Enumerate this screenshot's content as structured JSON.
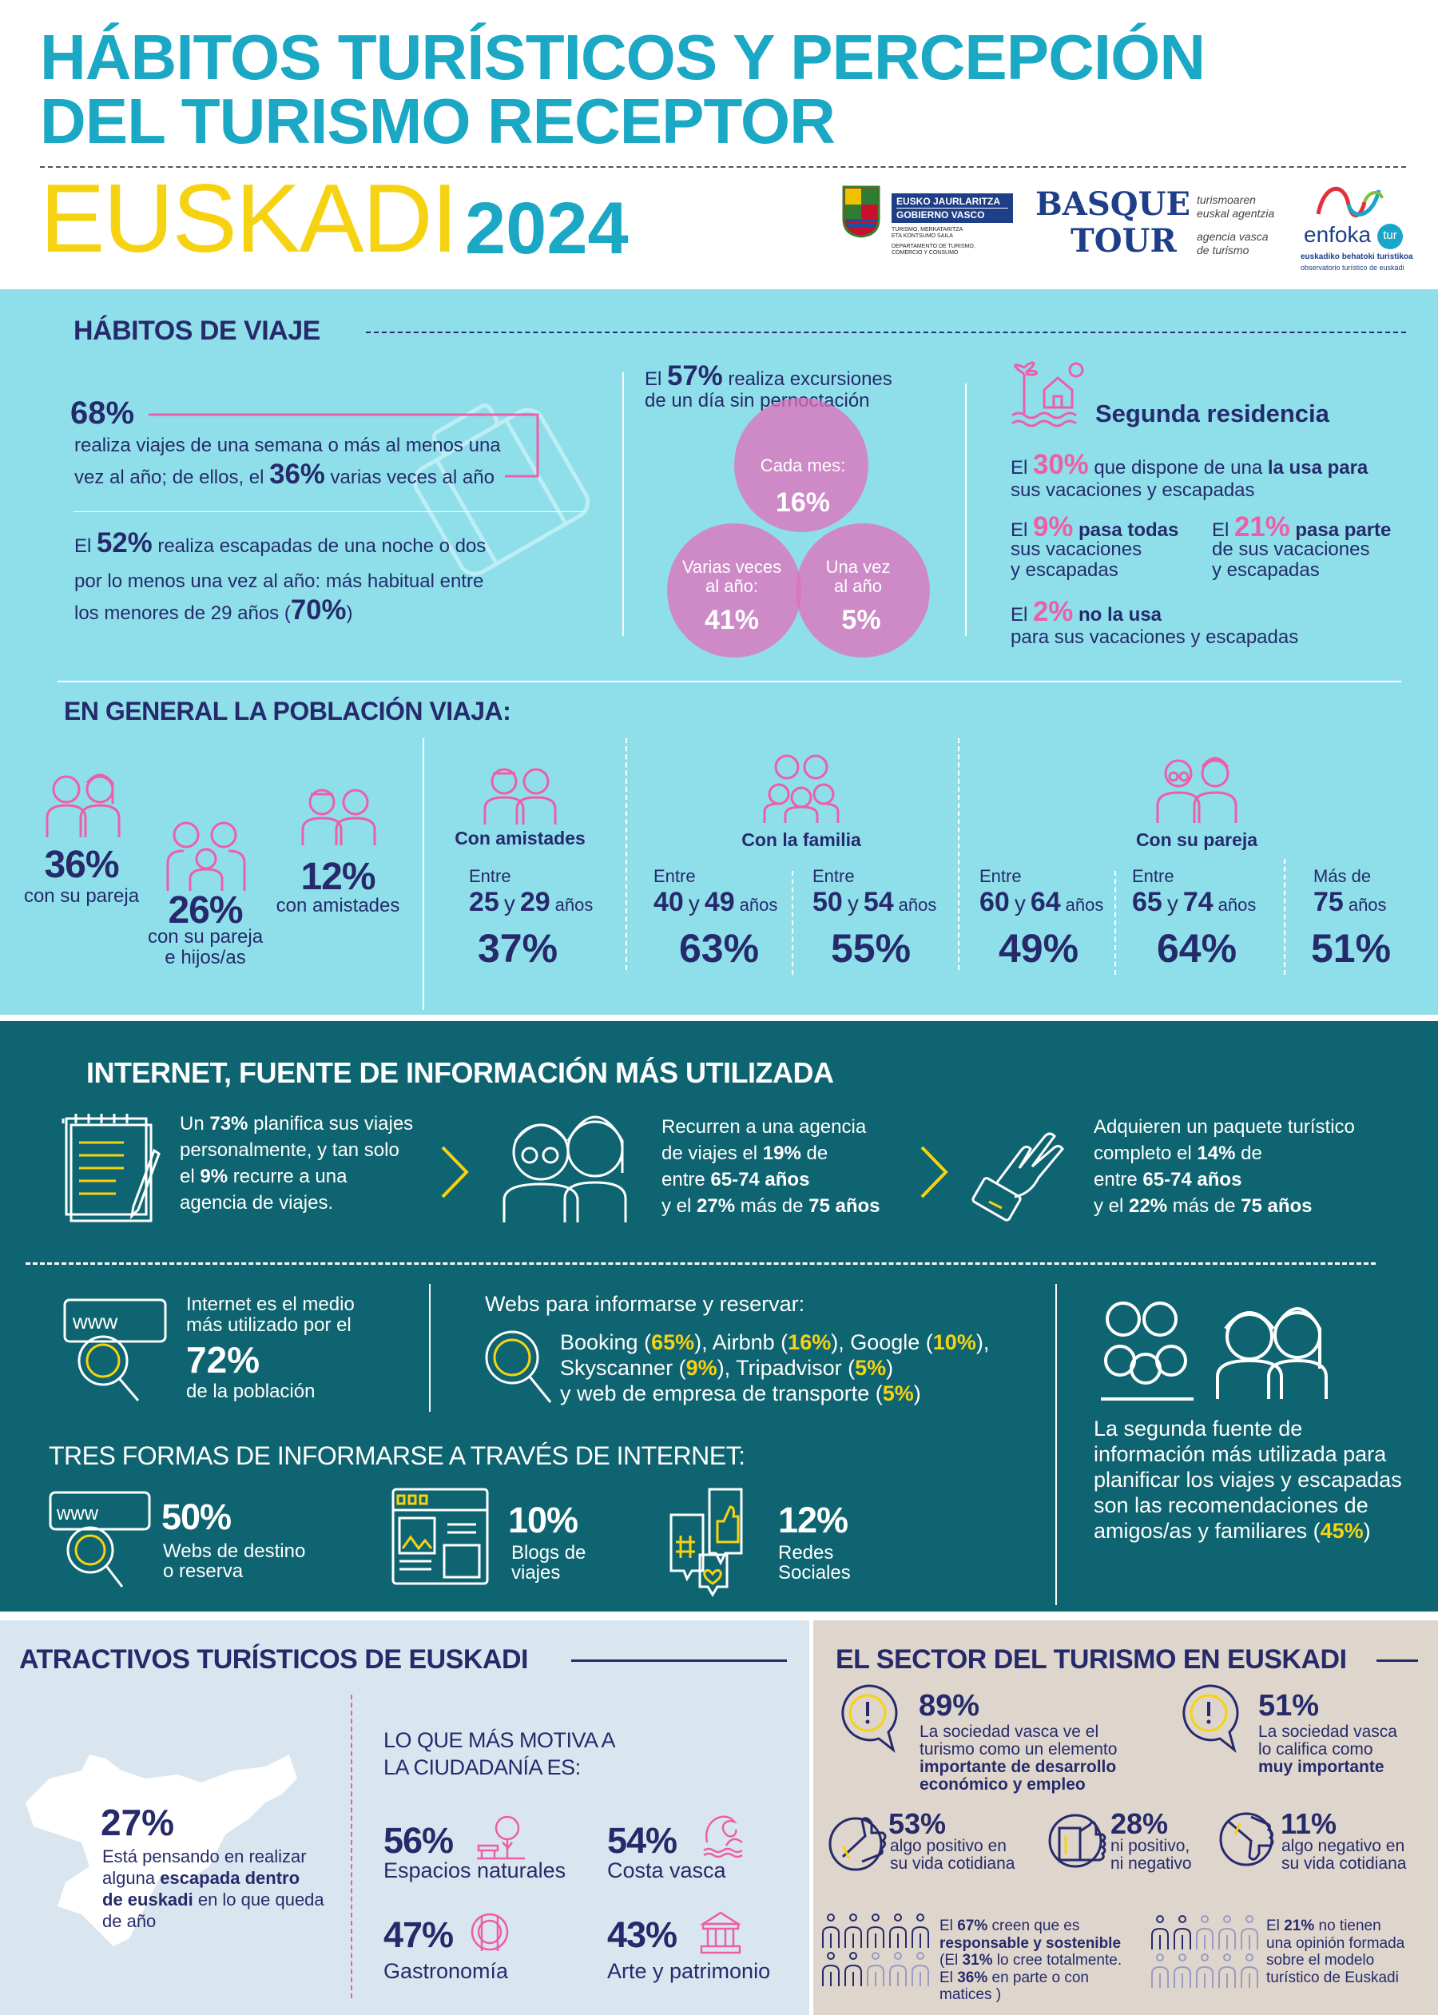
{
  "header": {
    "title_line1": "HÁBITOS TURÍSTICOS Y PERCEPCIÓN",
    "title_line2": "DEL TURISMO RECEPTOR",
    "region": "EUSKADI",
    "year": "2024",
    "colors": {
      "title": "#1ba8c4",
      "region": "#f6d312",
      "navy": "#262a6b",
      "pink": "#ec5fa8",
      "cyan_bg": "#8fdfeb",
      "teal_bg": "#0e6470"
    },
    "logos": {
      "gobierno": {
        "line1": "EUSKO JAURLARITZA",
        "line2": "GOBIERNO VASCO",
        "dept1": "TURISMO, MERKATARITZA",
        "dept2": "ETA KONTSUMO SAILA",
        "dept3": "DEPARTAMENTO DE TURISMO,",
        "dept4": "COMERCIO Y CONSUMO"
      },
      "basquetour": {
        "word1": "BASQUE",
        "word2": "TOUR",
        "tag1": "turismoaren",
        "tag2": "euskal agentzia",
        "tag3": "agencia vasca",
        "tag4": "de turismo"
      },
      "enfokatur": {
        "word": "enfoka",
        "badge": "tur",
        "sub1": "euskadiko behatoki turistikoa",
        "sub2": "observatorio turístico de euskadi"
      }
    }
  },
  "habitos": {
    "heading": "HÁBITOS DE VIAJE",
    "stat68": "68%",
    "p68_line1": [
      {
        "text": "realiza viajes de una semana o más al menos una",
        "style": ""
      }
    ],
    "p68_line2": [
      {
        "text": "vez al año; de ellos, el ",
        "style": ""
      },
      {
        "text": "36%",
        "style": "n"
      },
      {
        "text": " varias veces al año",
        "style": ""
      }
    ],
    "p52_line1": [
      {
        "text": "El ",
        "style": ""
      },
      {
        "text": "52%",
        "style": "n"
      },
      {
        "text": " realiza escapadas de una noche o dos",
        "style": ""
      }
    ],
    "p52_line2": [
      {
        "text": "por lo menos una vez al año: más habitual entre",
        "style": ""
      }
    ],
    "p52_line3": [
      {
        "text": "los menores de 29 años (",
        "style": ""
      },
      {
        "text": "70%",
        "style": "n"
      },
      {
        "text": ")",
        "style": ""
      }
    ],
    "exc_line1": [
      {
        "text": "El ",
        "style": ""
      },
      {
        "text": "57%",
        "style": "n"
      },
      {
        "text": " realiza excursiones",
        "style": ""
      }
    ],
    "exc_line2": [
      {
        "text": "de un día sin pernoctación",
        "style": ""
      }
    ],
    "venn": [
      {
        "label": "Cada mes:",
        "value": "16%"
      },
      {
        "label": "Varias veces al año:",
        "value": "41%"
      },
      {
        "label": "Una vez al año",
        "value": "5%"
      }
    ],
    "segunda": {
      "title": "Segunda residencia",
      "s30_line1": [
        {
          "text": "El ",
          "style": ""
        },
        {
          "text": "30%",
          "style": "p"
        },
        {
          "text": " que dispone de una ",
          "style": ""
        },
        {
          "text": "la usa para",
          "style": "b"
        }
      ],
      "s30_line2": [
        {
          "text": "sus vacaciones y escapadas",
          "style": ""
        }
      ],
      "s9_line1": [
        {
          "text": "El ",
          "style": ""
        },
        {
          "text": "9%",
          "style": "p"
        },
        {
          "text": " pasa todas",
          "style": "b"
        }
      ],
      "s9_line2": "sus vacaciones",
      "s9_line3": "y escapadas",
      "s21_line1": [
        {
          "text": "El ",
          "style": ""
        },
        {
          "text": "21%",
          "style": "p"
        },
        {
          "text": " pasa parte",
          "style": "b"
        }
      ],
      "s21_line2": "de sus vacaciones",
      "s21_line3": "y escapadas",
      "s2_line1": [
        {
          "text": "El ",
          "style": ""
        },
        {
          "text": "2%",
          "style": "p"
        },
        {
          "text": " no la usa",
          "style": "b"
        }
      ],
      "s2_line2": "para sus vacaciones y escapadas"
    }
  },
  "poblacion": {
    "heading": "EN GENERAL LA POBLACIÓN VIAJA:",
    "overall": [
      {
        "value": "36%",
        "label1": "con su pareja",
        "label2": ""
      },
      {
        "value": "26%",
        "label1": "con su pareja",
        "label2": "e hijos/as"
      },
      {
        "value": "12%",
        "label1": "con amistades",
        "label2": ""
      }
    ],
    "groups": [
      "Con amistades",
      "Con la familia",
      "Con su pareja"
    ],
    "ages": [
      {
        "prefix": "Entre",
        "a": "25",
        "y": "y",
        "b": "29",
        "unit": "años",
        "value": "37%"
      },
      {
        "prefix": "Entre",
        "a": "40",
        "y": "y",
        "b": "49",
        "unit": "años",
        "value": "63%"
      },
      {
        "prefix": "Entre",
        "a": "50",
        "y": "y",
        "b": "54",
        "unit": "años",
        "value": "55%"
      },
      {
        "prefix": "Entre",
        "a": "60",
        "y": "y",
        "b": "64",
        "unit": "años",
        "value": "49%"
      },
      {
        "prefix": "Entre",
        "a": "65",
        "y": "y",
        "b": "74",
        "unit": "años",
        "value": "64%"
      },
      {
        "prefix": "Más de",
        "a": "75",
        "y": "",
        "b": "",
        "unit": "años",
        "value": "51%"
      }
    ]
  },
  "internet": {
    "heading": "INTERNET, FUENTE DE INFORMACIÓN MÁS UTILIZADA",
    "block1": [
      [
        {
          "text": "Un ",
          "style": ""
        },
        {
          "text": "73%",
          "style": "wb"
        },
        {
          "text": " planifica sus viajes",
          "style": ""
        }
      ],
      [
        {
          "text": "personalmente, y tan solo",
          "style": ""
        }
      ],
      [
        {
          "text": "el ",
          "style": ""
        },
        {
          "text": "9%",
          "style": "wb"
        },
        {
          "text": " recurre a una",
          "style": ""
        }
      ],
      [
        {
          "text": "agencia de viajes.",
          "style": ""
        }
      ]
    ],
    "block2": [
      [
        {
          "text": "Recurren a una agencia",
          "style": ""
        }
      ],
      [
        {
          "text": "de viajes el ",
          "style": ""
        },
        {
          "text": "19%",
          "style": "wb"
        },
        {
          "text": " de",
          "style": ""
        }
      ],
      [
        {
          "text": "entre ",
          "style": ""
        },
        {
          "text": "65-74 años",
          "style": "wb"
        }
      ],
      [
        {
          "text": "y el ",
          "style": ""
        },
        {
          "text": "27%",
          "style": "wb"
        },
        {
          "text": " más de ",
          "style": ""
        },
        {
          "text": "75 años",
          "style": "wb"
        }
      ]
    ],
    "block3": [
      [
        {
          "text": "Adquieren un paquete turístico",
          "style": ""
        }
      ],
      [
        {
          "text": "completo el ",
          "style": ""
        },
        {
          "text": "14%",
          "style": "wb"
        },
        {
          "text": " de",
          "style": ""
        }
      ],
      [
        {
          "text": "entre ",
          "style": ""
        },
        {
          "text": "65-74 años",
          "style": "wb"
        }
      ],
      [
        {
          "text": "y el ",
          "style": ""
        },
        {
          "text": "22%",
          "style": "wb"
        },
        {
          "text": " más de ",
          "style": ""
        },
        {
          "text": "75 años",
          "style": "wb"
        }
      ]
    ],
    "medio_line1": "Internet es el medio",
    "medio_line2": "más utilizado por el",
    "medio_value": "72%",
    "medio_line3": "de la población",
    "webs_heading": "Webs para informarse y reservar:",
    "webs": [
      [
        {
          "text": "Booking (",
          "style": ""
        },
        {
          "text": "65%",
          "style": "y"
        },
        {
          "text": "), Airbnb (",
          "style": ""
        },
        {
          "text": "16%",
          "style": "y"
        },
        {
          "text": "), Google (",
          "style": ""
        },
        {
          "text": "10%",
          "style": "y"
        },
        {
          "text": "),",
          "style": ""
        }
      ],
      [
        {
          "text": "Skyscanner (",
          "style": ""
        },
        {
          "text": "9%",
          "style": "y"
        },
        {
          "text": "), Tripadvisor (",
          "style": ""
        },
        {
          "text": "5%",
          "style": "y"
        },
        {
          "text": ")",
          "style": ""
        }
      ],
      [
        {
          "text": "y web de empresa de transporte (",
          "style": ""
        },
        {
          "text": "5%",
          "style": "y"
        },
        {
          "text": ")",
          "style": ""
        }
      ]
    ],
    "segunda_fuente": [
      [
        {
          "text": "La segunda fuente de",
          "style": ""
        }
      ],
      [
        {
          "text": "información más utilizada para",
          "style": ""
        }
      ],
      [
        {
          "text": "planificar los viajes y escapadas",
          "style": ""
        }
      ],
      [
        {
          "text": "son las recomendaciones de",
          "style": ""
        }
      ],
      [
        {
          "text": "amigos/as y familiares  (",
          "style": ""
        },
        {
          "text": "45%",
          "style": "y"
        },
        {
          "text": ")",
          "style": ""
        }
      ]
    ],
    "tres_heading": "TRES FORMAS DE INFORMARSE A TRAVÉS DE INTERNET:",
    "tres": [
      {
        "value": "50%",
        "label1": "Webs de destino",
        "label2": "o reserva"
      },
      {
        "value": "10%",
        "label1": "Blogs de",
        "label2": "viajes"
      },
      {
        "value": "12%",
        "label1": "Redes",
        "label2": "Sociales"
      }
    ]
  },
  "atractivos": {
    "heading": "ATRACTIVOS TURÍSTICOS DE EUSKADI",
    "value": "27%",
    "text": [
      [
        {
          "text": "Está pensando en realizar",
          "style": ""
        }
      ],
      [
        {
          "text": "alguna ",
          "style": ""
        },
        {
          "text": "escapada dentro",
          "style": "b"
        }
      ],
      [
        {
          "text": "de euskadi",
          "style": "b"
        },
        {
          "text": " en lo que queda",
          "style": ""
        }
      ],
      [
        {
          "text": "de año",
          "style": ""
        }
      ]
    ],
    "motiva_line1": "LO QUE MÁS MOTIVA A",
    "motiva_line2": "LA CIUDADANÍA ES:",
    "motivos": [
      {
        "value": "56%",
        "label": "Espacios naturales",
        "icon": "tree-bench-icon"
      },
      {
        "value": "54%",
        "label": "Costa vasca",
        "icon": "wave-icon"
      },
      {
        "value": "47%",
        "label": "Gastronomía",
        "icon": "plate-cutlery-icon"
      },
      {
        "value": "43%",
        "label": "Arte y patrimonio",
        "icon": "museum-icon"
      }
    ]
  },
  "sector": {
    "heading": "EL SECTOR DEL TURISMO EN EUSKADI",
    "s89": {
      "value": "89%",
      "lines": [
        [
          {
            "text": "La sociedad vasca ve el",
            "style": ""
          }
        ],
        [
          {
            "text": "turismo como un elemento",
            "style": ""
          }
        ],
        [
          {
            "text": "importante de desarrollo",
            "style": "b"
          }
        ],
        [
          {
            "text": "económico y empleo",
            "style": "b"
          }
        ]
      ]
    },
    "s51": {
      "value": "51%",
      "lines": [
        [
          {
            "text": "La sociedad vasca",
            "style": ""
          }
        ],
        [
          {
            "text": "lo califica como",
            "style": ""
          }
        ],
        [
          {
            "text": "muy importante",
            "style": "b"
          }
        ]
      ]
    },
    "opinions": [
      {
        "value": "53%",
        "label1": "algo positivo en",
        "label2": "su vida cotidiana",
        "icon": "thumb-up-icon"
      },
      {
        "value": "28%",
        "label1": "ni positivo,",
        "label2": "ni negativo",
        "icon": "thumb-side-icon"
      },
      {
        "value": "11%",
        "label1": "algo negativo en",
        "label2": "su vida cotidiana",
        "icon": "thumb-down-icon"
      }
    ],
    "sostenible": {
      "filled": 7,
      "total": 10,
      "lines": [
        [
          {
            "text": "El ",
            "style": ""
          },
          {
            "text": "67%",
            "style": "b"
          },
          {
            "text": " creen que es",
            "style": ""
          }
        ],
        [
          {
            "text": "responsable y sostenible",
            "style": "b"
          }
        ],
        [
          {
            "text": "(El ",
            "style": ""
          },
          {
            "text": "31%",
            "style": "b"
          },
          {
            "text": " lo cree totalmente.",
            "style": ""
          }
        ],
        [
          {
            "text": "El ",
            "style": ""
          },
          {
            "text": "36%",
            "style": "b"
          },
          {
            "text": " en parte o con",
            "style": ""
          }
        ],
        [
          {
            "text": "matices )",
            "style": ""
          }
        ]
      ]
    },
    "sin_opinion": {
      "filled": 2,
      "total": 10,
      "lines": [
        [
          {
            "text": "El ",
            "style": ""
          },
          {
            "text": "21%",
            "style": "b"
          },
          {
            "text": " no tienen",
            "style": ""
          }
        ],
        [
          {
            "text": "una opinión formada",
            "style": ""
          }
        ],
        [
          {
            "text": "sobre el modelo",
            "style": ""
          }
        ],
        [
          {
            "text": "turístico de Euskadi",
            "style": ""
          }
        ]
      ]
    }
  }
}
